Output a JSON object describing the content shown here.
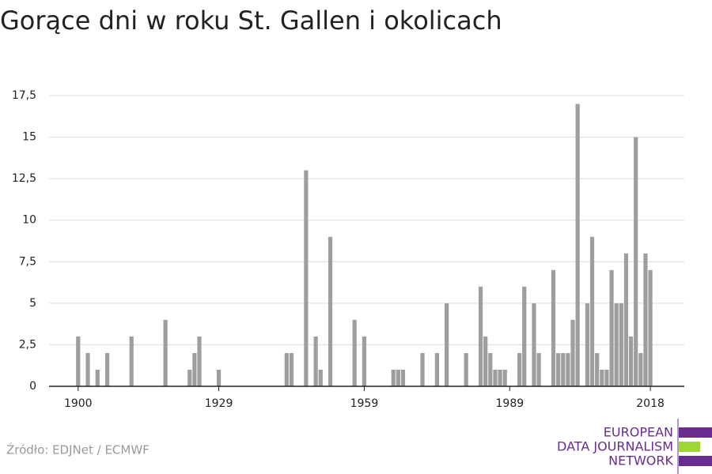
{
  "chart_data": {
    "type": "bar",
    "title": "Gorące dni w roku St. Gallen i okolicach",
    "source": "Źródło: EDJNet / ECMWF",
    "logo": [
      "EUROPEAN",
      "DATA JOURNALISM",
      "NETWORK"
    ],
    "color": "#9e9e9e",
    "x": [
      1900,
      1902,
      1904,
      1906,
      1911,
      1918,
      1923,
      1924,
      1925,
      1929,
      1943,
      1944,
      1947,
      1949,
      1950,
      1952,
      1957,
      1959,
      1965,
      1966,
      1967,
      1971,
      1974,
      1976,
      1980,
      1983,
      1984,
      1985,
      1986,
      1987,
      1988,
      1991,
      1992,
      1994,
      1995,
      1998,
      1999,
      2000,
      2001,
      2002,
      2003,
      2005,
      2006,
      2007,
      2008,
      2009,
      2010,
      2011,
      2012,
      2013,
      2014,
      2015,
      2016,
      2017,
      2018
    ],
    "values": [
      3,
      2,
      1,
      2,
      3,
      4,
      1,
      2,
      3,
      1,
      2,
      2,
      13,
      3,
      1,
      9,
      4,
      3,
      1,
      1,
      1,
      2,
      2,
      5,
      2,
      6,
      3,
      2,
      1,
      1,
      1,
      2,
      6,
      5,
      2,
      7,
      2,
      2,
      2,
      4,
      17,
      5,
      9,
      2,
      1,
      1,
      7,
      5,
      5,
      8,
      3,
      15,
      2,
      8,
      7
    ],
    "xlim": [
      1894,
      2025
    ],
    "xticks": [
      1900,
      1929,
      1959,
      1989,
      2018
    ],
    "ylim": [
      0,
      17.5
    ],
    "yticks": [
      0,
      {
        "value": 2.5,
        "label": "2,5"
      },
      5,
      {
        "value": 7.5,
        "label": "7,5"
      },
      10,
      {
        "value": 12.5,
        "label": "12,5"
      },
      15,
      {
        "value": 17.5,
        "label": "17,5"
      }
    ],
    "grid": true
  }
}
